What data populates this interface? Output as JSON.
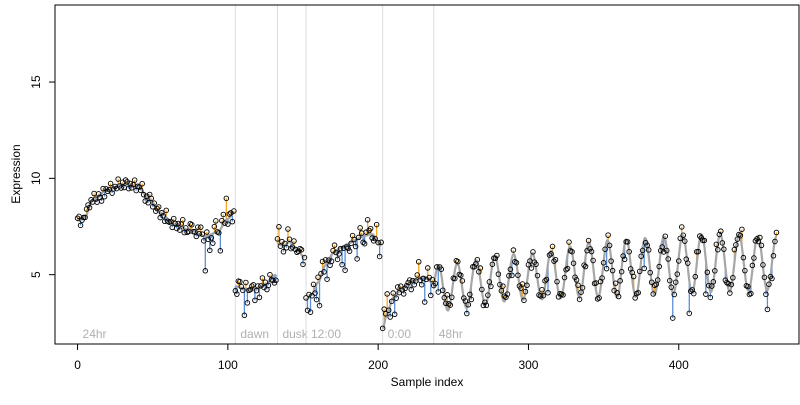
{
  "chart_data": {
    "type": "scatter",
    "title": "",
    "xlabel": "Sample index",
    "ylabel": "Expression",
    "xlim": [
      -15,
      480
    ],
    "ylim": [
      1.4,
      19.0
    ],
    "x_ticks": [
      0,
      100,
      200,
      300,
      400
    ],
    "y_ticks": [
      5,
      10,
      15
    ],
    "grid": false,
    "legend": "none",
    "colors": {
      "points_stroke": "#000000",
      "smooth_line": "#a6a6a6",
      "residual_positive": "#f5a623",
      "residual_negative": "#5b8fd9",
      "markers": "#dddddd",
      "marker_labels": "#b0b0b0",
      "axes": "#000000"
    },
    "markers": [
      {
        "x": 0,
        "label": "24hr",
        "line": false
      },
      {
        "x": 105,
        "label": "dawn",
        "line": true
      },
      {
        "x": 133,
        "label": "dusk",
        "line": true
      },
      {
        "x": 152,
        "label": "12:00",
        "line": true
      },
      {
        "x": 203,
        "label": "0:00",
        "line": true
      },
      {
        "x": 237,
        "label": "48hr",
        "line": true
      }
    ],
    "segments": [
      {
        "type": "anchors",
        "x0": 0,
        "x1": 104,
        "start": 0,
        "anchors": [
          [
            0,
            7.8
          ],
          [
            5,
            8.0
          ],
          [
            10,
            8.9
          ],
          [
            20,
            9.4
          ],
          [
            30,
            9.7
          ],
          [
            40,
            9.6
          ],
          [
            48,
            8.9
          ],
          [
            55,
            8.2
          ],
          [
            65,
            7.6
          ],
          [
            75,
            7.3
          ],
          [
            85,
            7.0
          ],
          [
            93,
            7.2
          ],
          [
            100,
            7.9
          ],
          [
            104,
            8.2
          ]
        ],
        "residuals": [
          [
            3,
            -0.1
          ],
          [
            7,
            0.3
          ],
          [
            16,
            -0.4
          ],
          [
            22,
            0.3
          ],
          [
            34,
            -0.2
          ],
          [
            45,
            -0.3
          ],
          [
            58,
            -0.3
          ],
          [
            70,
            0.4
          ],
          [
            76,
            0.3
          ],
          [
            82,
            0.4
          ],
          [
            85,
            -1.8
          ],
          [
            88,
            -0.8
          ],
          [
            90,
            -0.5
          ],
          [
            92,
            0.6
          ],
          [
            95,
            -1.1
          ],
          [
            97,
            0.5
          ],
          [
            99,
            1.1
          ],
          [
            101,
            0.2
          ],
          [
            103,
            -0.4
          ]
        ]
      },
      {
        "type": "anchors",
        "x0": 105,
        "x1": 132,
        "start": 105,
        "anchors": [
          [
            105,
            4.4
          ],
          [
            110,
            4.3
          ],
          [
            115,
            4.2
          ],
          [
            120,
            4.3
          ],
          [
            125,
            4.5
          ],
          [
            132,
            5.0
          ]
        ],
        "residuals": [
          [
            106,
            -0.4
          ],
          [
            108,
            0.3
          ],
          [
            111,
            -1.4
          ],
          [
            113,
            -0.7
          ],
          [
            116,
            0.2
          ],
          [
            118,
            -0.6
          ],
          [
            121,
            -0.5
          ],
          [
            123,
            0.4
          ],
          [
            126,
            -0.3
          ],
          [
            128,
            0.3
          ],
          [
            130,
            -0.2
          ],
          [
            131,
            -0.4
          ]
        ]
      },
      {
        "type": "anchors",
        "x0": 133,
        "x1": 151,
        "start": 133,
        "anchors": [
          [
            133,
            6.6
          ],
          [
            137,
            6.5
          ],
          [
            141,
            6.7
          ],
          [
            145,
            6.4
          ],
          [
            151,
            5.9
          ]
        ],
        "residuals": [
          [
            134,
            0.9
          ],
          [
            136,
            0.2
          ],
          [
            139,
            -0.2
          ],
          [
            140,
            0.7
          ],
          [
            142,
            -0.3
          ],
          [
            144,
            0.3
          ],
          [
            146,
            -0.2
          ],
          [
            148,
            0.2
          ],
          [
            150,
            -0.4
          ]
        ]
      },
      {
        "type": "anchors",
        "x0": 152,
        "x1": 202,
        "start": 152,
        "anchors": [
          [
            152,
            3.7
          ],
          [
            156,
            4.0
          ],
          [
            160,
            4.6
          ],
          [
            165,
            5.5
          ],
          [
            170,
            6.1
          ],
          [
            175,
            6.4
          ],
          [
            180,
            6.6
          ],
          [
            185,
            6.8
          ],
          [
            190,
            7.0
          ],
          [
            196,
            7.1
          ],
          [
            202,
            6.5
          ]
        ],
        "residuals": [
          [
            153,
            -0.6
          ],
          [
            155,
            -0.9
          ],
          [
            157,
            0.4
          ],
          [
            159,
            -0.8
          ],
          [
            161,
            -1.3
          ],
          [
            163,
            0.5
          ],
          [
            166,
            -0.8
          ],
          [
            168,
            -0.4
          ],
          [
            171,
            0.4
          ],
          [
            173,
            -0.5
          ],
          [
            176,
            -0.9
          ],
          [
            178,
            -1.3
          ],
          [
            181,
            -0.4
          ],
          [
            183,
            0.3
          ],
          [
            186,
            -1.0
          ],
          [
            188,
            0.5
          ],
          [
            191,
            -0.4
          ],
          [
            193,
            0.8
          ],
          [
            195,
            0.3
          ],
          [
            197,
            -0.3
          ],
          [
            199,
            0.8
          ],
          [
            201,
            -0.6
          ]
        ]
      },
      {
        "type": "anchors",
        "x0": 203,
        "x1": 236,
        "start": 203,
        "anchors": [
          [
            203,
            2.2
          ],
          [
            206,
            3.0
          ],
          [
            210,
            3.8
          ],
          [
            215,
            4.2
          ],
          [
            220,
            4.5
          ],
          [
            225,
            4.7
          ],
          [
            230,
            4.9
          ],
          [
            236,
            4.6
          ]
        ],
        "residuals": [
          [
            204,
            0.8
          ],
          [
            206,
            1.0
          ],
          [
            208,
            -0.6
          ],
          [
            211,
            -0.9
          ],
          [
            213,
            0.3
          ],
          [
            218,
            -0.1
          ],
          [
            221,
            0.2
          ],
          [
            224,
            -0.2
          ],
          [
            227,
            0.9
          ],
          [
            229,
            -0.4
          ],
          [
            231,
            -1.3
          ],
          [
            233,
            0.6
          ],
          [
            235,
            -0.7
          ]
        ]
      },
      {
        "type": "oscillation",
        "x0": 237,
        "x1": 465,
        "start": 237,
        "baseline": [
          [
            237,
            4.3
          ],
          [
            300,
            4.9
          ],
          [
            350,
            5.3
          ],
          [
            420,
            5.6
          ],
          [
            465,
            5.6
          ]
        ],
        "amplitude": [
          [
            237,
            1.2
          ],
          [
            300,
            1.2
          ],
          [
            360,
            1.5
          ],
          [
            420,
            1.5
          ],
          [
            465,
            1.4
          ]
        ],
        "period": 12.5,
        "residuals": [
          [
            240,
            -1.4
          ],
          [
            246,
            0.8
          ],
          [
            251,
            -0.4
          ],
          [
            256,
            0.4
          ],
          [
            262,
            -0.8
          ],
          [
            268,
            0.6
          ],
          [
            275,
            -0.6
          ],
          [
            283,
            0.7
          ],
          [
            289,
            -0.9
          ],
          [
            296,
            0.8
          ],
          [
            302,
            -0.7
          ],
          [
            309,
            0.5
          ],
          [
            313,
            -1.5
          ],
          [
            318,
            0.6
          ],
          [
            326,
            -0.7
          ],
          [
            333,
            0.5
          ],
          [
            338,
            -0.5
          ],
          [
            345,
            0.4
          ],
          [
            352,
            -1.4
          ],
          [
            358,
            0.6
          ],
          [
            364,
            -0.8
          ],
          [
            370,
            0.7
          ],
          [
            377,
            -1.5
          ],
          [
            384,
            0.5
          ],
          [
            390,
            -0.8
          ],
          [
            396,
            -1.3
          ],
          [
            402,
            0.5
          ],
          [
            407,
            -1.7
          ],
          [
            412,
            0.6
          ],
          [
            418,
            -1.8
          ],
          [
            425,
            0.6
          ],
          [
            431,
            -0.7
          ],
          [
            437,
            0.7
          ],
          [
            442,
            0.9
          ],
          [
            448,
            -0.6
          ],
          [
            455,
            0.4
          ],
          [
            459,
            -1.0
          ],
          [
            462,
            -0.8
          ]
        ]
      }
    ]
  }
}
